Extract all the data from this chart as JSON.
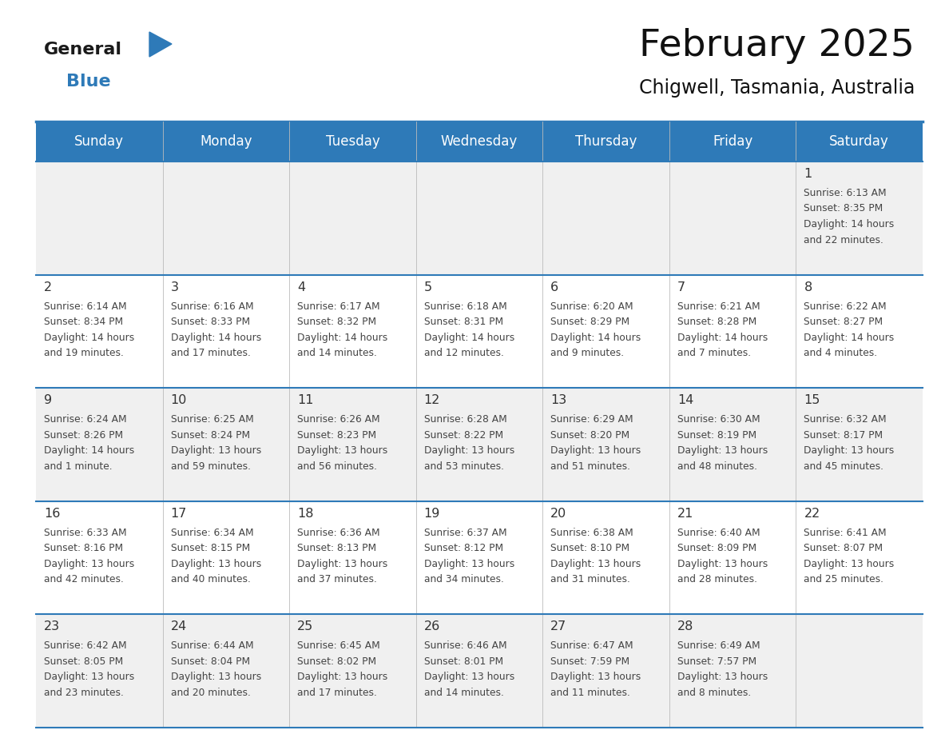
{
  "title": "February 2025",
  "subtitle": "Chigwell, Tasmania, Australia",
  "header_bg": "#2E7AB8",
  "header_text_color": "#FFFFFF",
  "weekdays": [
    "Sunday",
    "Monday",
    "Tuesday",
    "Wednesday",
    "Thursday",
    "Friday",
    "Saturday"
  ],
  "alt_row_bg": "#F0F0F0",
  "white_bg": "#FFFFFF",
  "cell_text_color": "#444444",
  "day_num_color": "#333333",
  "calendar": [
    [
      null,
      null,
      null,
      null,
      null,
      null,
      {
        "day": "1",
        "sunrise": "6:13 AM",
        "sunset": "8:35 PM",
        "daylight": "14 hours",
        "daylight2": "and 22 minutes."
      }
    ],
    [
      {
        "day": "2",
        "sunrise": "6:14 AM",
        "sunset": "8:34 PM",
        "daylight": "14 hours",
        "daylight2": "and 19 minutes."
      },
      {
        "day": "3",
        "sunrise": "6:16 AM",
        "sunset": "8:33 PM",
        "daylight": "14 hours",
        "daylight2": "and 17 minutes."
      },
      {
        "day": "4",
        "sunrise": "6:17 AM",
        "sunset": "8:32 PM",
        "daylight": "14 hours",
        "daylight2": "and 14 minutes."
      },
      {
        "day": "5",
        "sunrise": "6:18 AM",
        "sunset": "8:31 PM",
        "daylight": "14 hours",
        "daylight2": "and 12 minutes."
      },
      {
        "day": "6",
        "sunrise": "6:20 AM",
        "sunset": "8:29 PM",
        "daylight": "14 hours",
        "daylight2": "and 9 minutes."
      },
      {
        "day": "7",
        "sunrise": "6:21 AM",
        "sunset": "8:28 PM",
        "daylight": "14 hours",
        "daylight2": "and 7 minutes."
      },
      {
        "day": "8",
        "sunrise": "6:22 AM",
        "sunset": "8:27 PM",
        "daylight": "14 hours",
        "daylight2": "and 4 minutes."
      }
    ],
    [
      {
        "day": "9",
        "sunrise": "6:24 AM",
        "sunset": "8:26 PM",
        "daylight": "14 hours",
        "daylight2": "and 1 minute."
      },
      {
        "day": "10",
        "sunrise": "6:25 AM",
        "sunset": "8:24 PM",
        "daylight": "13 hours",
        "daylight2": "and 59 minutes."
      },
      {
        "day": "11",
        "sunrise": "6:26 AM",
        "sunset": "8:23 PM",
        "daylight": "13 hours",
        "daylight2": "and 56 minutes."
      },
      {
        "day": "12",
        "sunrise": "6:28 AM",
        "sunset": "8:22 PM",
        "daylight": "13 hours",
        "daylight2": "and 53 minutes."
      },
      {
        "day": "13",
        "sunrise": "6:29 AM",
        "sunset": "8:20 PM",
        "daylight": "13 hours",
        "daylight2": "and 51 minutes."
      },
      {
        "day": "14",
        "sunrise": "6:30 AM",
        "sunset": "8:19 PM",
        "daylight": "13 hours",
        "daylight2": "and 48 minutes."
      },
      {
        "day": "15",
        "sunrise": "6:32 AM",
        "sunset": "8:17 PM",
        "daylight": "13 hours",
        "daylight2": "and 45 minutes."
      }
    ],
    [
      {
        "day": "16",
        "sunrise": "6:33 AM",
        "sunset": "8:16 PM",
        "daylight": "13 hours",
        "daylight2": "and 42 minutes."
      },
      {
        "day": "17",
        "sunrise": "6:34 AM",
        "sunset": "8:15 PM",
        "daylight": "13 hours",
        "daylight2": "and 40 minutes."
      },
      {
        "day": "18",
        "sunrise": "6:36 AM",
        "sunset": "8:13 PM",
        "daylight": "13 hours",
        "daylight2": "and 37 minutes."
      },
      {
        "day": "19",
        "sunrise": "6:37 AM",
        "sunset": "8:12 PM",
        "daylight": "13 hours",
        "daylight2": "and 34 minutes."
      },
      {
        "day": "20",
        "sunrise": "6:38 AM",
        "sunset": "8:10 PM",
        "daylight": "13 hours",
        "daylight2": "and 31 minutes."
      },
      {
        "day": "21",
        "sunrise": "6:40 AM",
        "sunset": "8:09 PM",
        "daylight": "13 hours",
        "daylight2": "and 28 minutes."
      },
      {
        "day": "22",
        "sunrise": "6:41 AM",
        "sunset": "8:07 PM",
        "daylight": "13 hours",
        "daylight2": "and 25 minutes."
      }
    ],
    [
      {
        "day": "23",
        "sunrise": "6:42 AM",
        "sunset": "8:05 PM",
        "daylight": "13 hours",
        "daylight2": "and 23 minutes."
      },
      {
        "day": "24",
        "sunrise": "6:44 AM",
        "sunset": "8:04 PM",
        "daylight": "13 hours",
        "daylight2": "and 20 minutes."
      },
      {
        "day": "25",
        "sunrise": "6:45 AM",
        "sunset": "8:02 PM",
        "daylight": "13 hours",
        "daylight2": "and 17 minutes."
      },
      {
        "day": "26",
        "sunrise": "6:46 AM",
        "sunset": "8:01 PM",
        "daylight": "13 hours",
        "daylight2": "and 14 minutes."
      },
      {
        "day": "27",
        "sunrise": "6:47 AM",
        "sunset": "7:59 PM",
        "daylight": "13 hours",
        "daylight2": "and 11 minutes."
      },
      {
        "day": "28",
        "sunrise": "6:49 AM",
        "sunset": "7:57 PM",
        "daylight": "13 hours",
        "daylight2": "and 8 minutes."
      },
      null
    ]
  ],
  "logo_general_color": "#1a1a1a",
  "logo_blue_color": "#2E7AB8",
  "logo_triangle_color": "#2E7AB8"
}
